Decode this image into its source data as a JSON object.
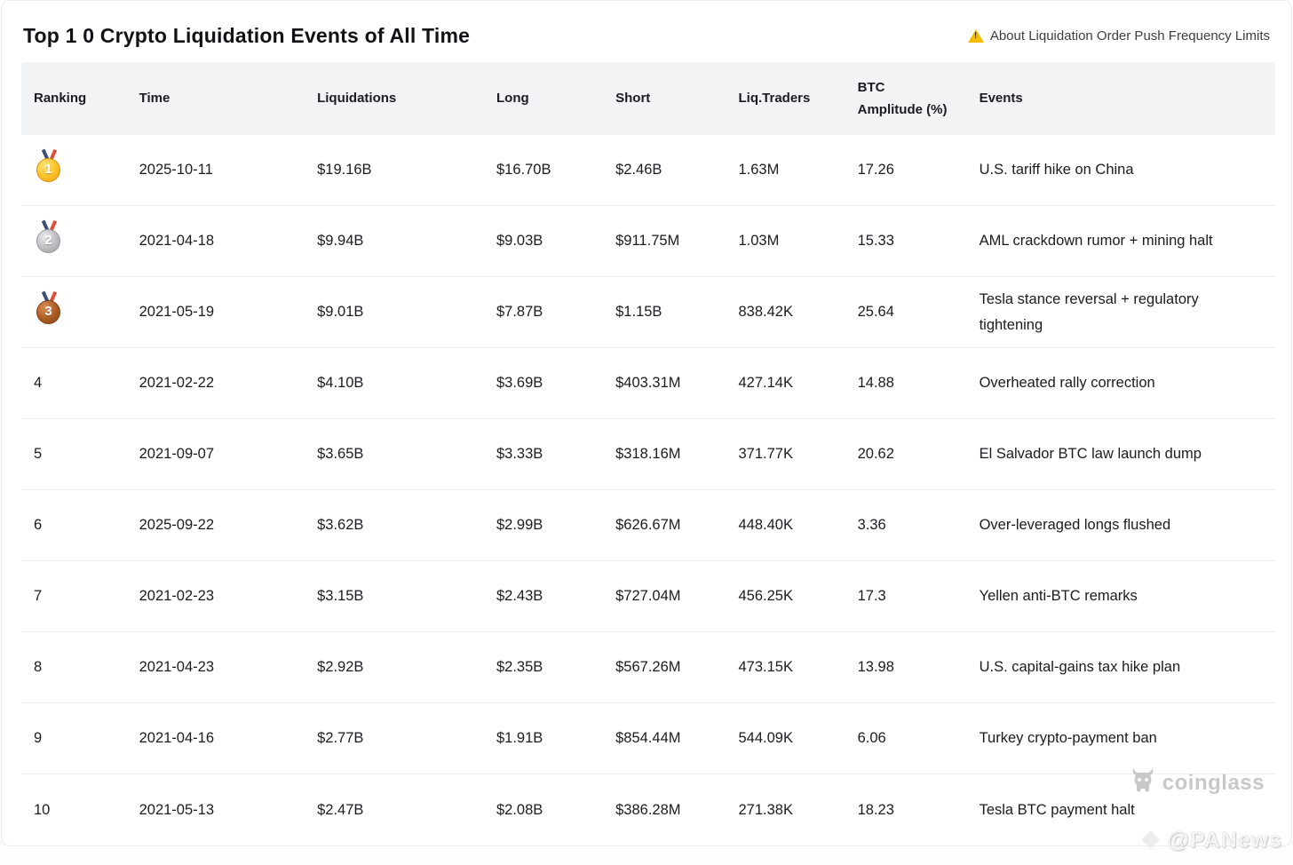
{
  "page": {
    "title": "Top 1 0 Crypto Liquidation Events of All Time",
    "notice_label": "About Liquidation Order Push Frequency Limits"
  },
  "colors": {
    "warning_yellow": "#f5bc00",
    "header_bg": "#f2f3f5",
    "row_divider": "#eef0f2",
    "text_primary": "#1b1b20",
    "watermark_gray": "#c8c8ca",
    "medal_gold": "#fcc62c",
    "medal_silver": "#bcbdc1",
    "medal_bronze": "#aa5a22"
  },
  "table": {
    "columns": [
      "Ranking",
      "Time",
      "Liquidations",
      "Long",
      "Short",
      "Liq.Traders",
      "BTC Amplitude (%)",
      "Events"
    ],
    "rows": [
      {
        "rank": "1",
        "medal": "gold",
        "time": "2025-10-11",
        "liquidations": "$19.16B",
        "long": "$16.70B",
        "short": "$2.46B",
        "liq_traders": "1.63M",
        "btc_amplitude": "17.26",
        "events": "U.S. tariff hike on China"
      },
      {
        "rank": "2",
        "medal": "silver",
        "time": "2021-04-18",
        "liquidations": "$9.94B",
        "long": "$9.03B",
        "short": "$911.75M",
        "liq_traders": "1.03M",
        "btc_amplitude": "15.33",
        "events": "AML crackdown rumor + mining halt"
      },
      {
        "rank": "3",
        "medal": "bronze",
        "time": "2021-05-19",
        "liquidations": "$9.01B",
        "long": "$7.87B",
        "short": "$1.15B",
        "liq_traders": "838.42K",
        "btc_amplitude": "25.64",
        "events": "Tesla stance reversal + regulatory tightening"
      },
      {
        "rank": "4",
        "medal": null,
        "time": "2021-02-22",
        "liquidations": "$4.10B",
        "long": "$3.69B",
        "short": "$403.31M",
        "liq_traders": "427.14K",
        "btc_amplitude": "14.88",
        "events": "Overheated rally correction"
      },
      {
        "rank": "5",
        "medal": null,
        "time": "2021-09-07",
        "liquidations": "$3.65B",
        "long": "$3.33B",
        "short": "$318.16M",
        "liq_traders": "371.77K",
        "btc_amplitude": "20.62",
        "events": "El Salvador BTC law launch dump"
      },
      {
        "rank": "6",
        "medal": null,
        "time": "2025-09-22",
        "liquidations": "$3.62B",
        "long": "$2.99B",
        "short": "$626.67M",
        "liq_traders": "448.40K",
        "btc_amplitude": "3.36",
        "events": "Over-leveraged longs flushed"
      },
      {
        "rank": "7",
        "medal": null,
        "time": "2021-02-23",
        "liquidations": "$3.15B",
        "long": "$2.43B",
        "short": "$727.04M",
        "liq_traders": "456.25K",
        "btc_amplitude": "17.3",
        "events": "Yellen anti-BTC remarks"
      },
      {
        "rank": "8",
        "medal": null,
        "time": "2021-04-23",
        "liquidations": "$2.92B",
        "long": "$2.35B",
        "short": "$567.26M",
        "liq_traders": "473.15K",
        "btc_amplitude": "13.98",
        "events": "U.S. capital-gains tax hike plan"
      },
      {
        "rank": "9",
        "medal": null,
        "time": "2021-04-16",
        "liquidations": "$2.77B",
        "long": "$1.91B",
        "short": "$854.44M",
        "liq_traders": "544.09K",
        "btc_amplitude": "6.06",
        "events": "Turkey crypto-payment ban"
      },
      {
        "rank": "10",
        "medal": null,
        "time": "2021-05-13",
        "liquidations": "$2.47B",
        "long": "$2.08B",
        "short": "$386.28M",
        "liq_traders": "271.38K",
        "btc_amplitude": "18.23",
        "events": "Tesla BTC payment halt"
      }
    ]
  },
  "watermarks": {
    "coinglass": "coinglass",
    "panews": "@PANews"
  }
}
